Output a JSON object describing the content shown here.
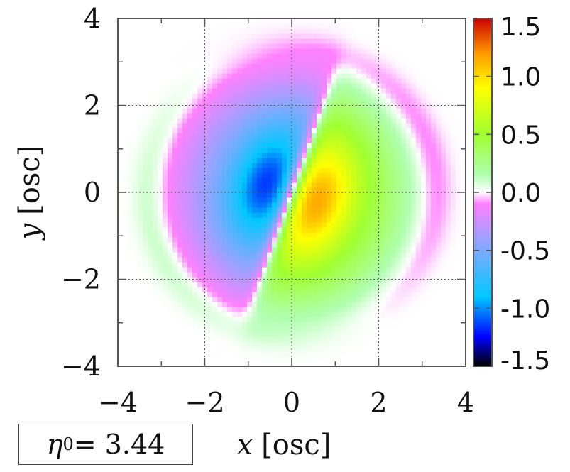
{
  "chart_data": {
    "type": "heatmap",
    "title": "",
    "xlabel_var": "x",
    "xlabel_unit": "[osc]",
    "ylabel_var": "y",
    "ylabel_unit": "[osc]",
    "xlim": [
      -4,
      4
    ],
    "ylim": [
      -4,
      4
    ],
    "xticks": [
      -4,
      -2,
      0,
      2,
      4
    ],
    "yticks": [
      -4,
      -2,
      0,
      2,
      4
    ],
    "xtick_labels": [
      "−4",
      "−2",
      "0",
      "2",
      "4"
    ],
    "ytick_labels": [
      "−4",
      "−2",
      "0",
      "2",
      "4"
    ],
    "grid": true,
    "colorbar": {
      "range": [
        -1.5,
        1.5
      ],
      "ticks": [
        1.5,
        1.0,
        0.5,
        0.0,
        -0.5,
        -1.0,
        -1.5
      ],
      "tick_labels": [
        "1.5",
        "1.0",
        "0.5",
        "0.0",
        "-0.5",
        "-1.0",
        "-1.5"
      ],
      "colors": [
        {
          "value": -1.5,
          "color": "#000000"
        },
        {
          "value": -1.25,
          "color": "#0000ff"
        },
        {
          "value": -0.9,
          "color": "#00c8ff"
        },
        {
          "value": -0.45,
          "color": "#8ea6ff"
        },
        {
          "value": -0.1,
          "color": "#ff80ff"
        },
        {
          "value": 0.0,
          "color": "#ffffff"
        },
        {
          "value": 0.15,
          "color": "#b0ffb0"
        },
        {
          "value": 0.5,
          "color": "#a0ff30"
        },
        {
          "value": 0.9,
          "color": "#ffff00"
        },
        {
          "value": 1.2,
          "color": "#ff9900"
        },
        {
          "value": 1.5,
          "color": "#cc0000"
        }
      ]
    },
    "field": {
      "description_points": [
        {
          "x": -0.65,
          "y": 0.25,
          "value": -1.05
        },
        {
          "x": 0.65,
          "y": -0.25,
          "value": 1.05
        },
        {
          "x": 0,
          "y": 0,
          "value": 0.0
        }
      ],
      "nodal_line_slope": 2.8,
      "envelope_radius": 2.7
    }
  },
  "annotation": {
    "symbol": "η",
    "subscript": "0",
    "text": " = 3.44"
  }
}
